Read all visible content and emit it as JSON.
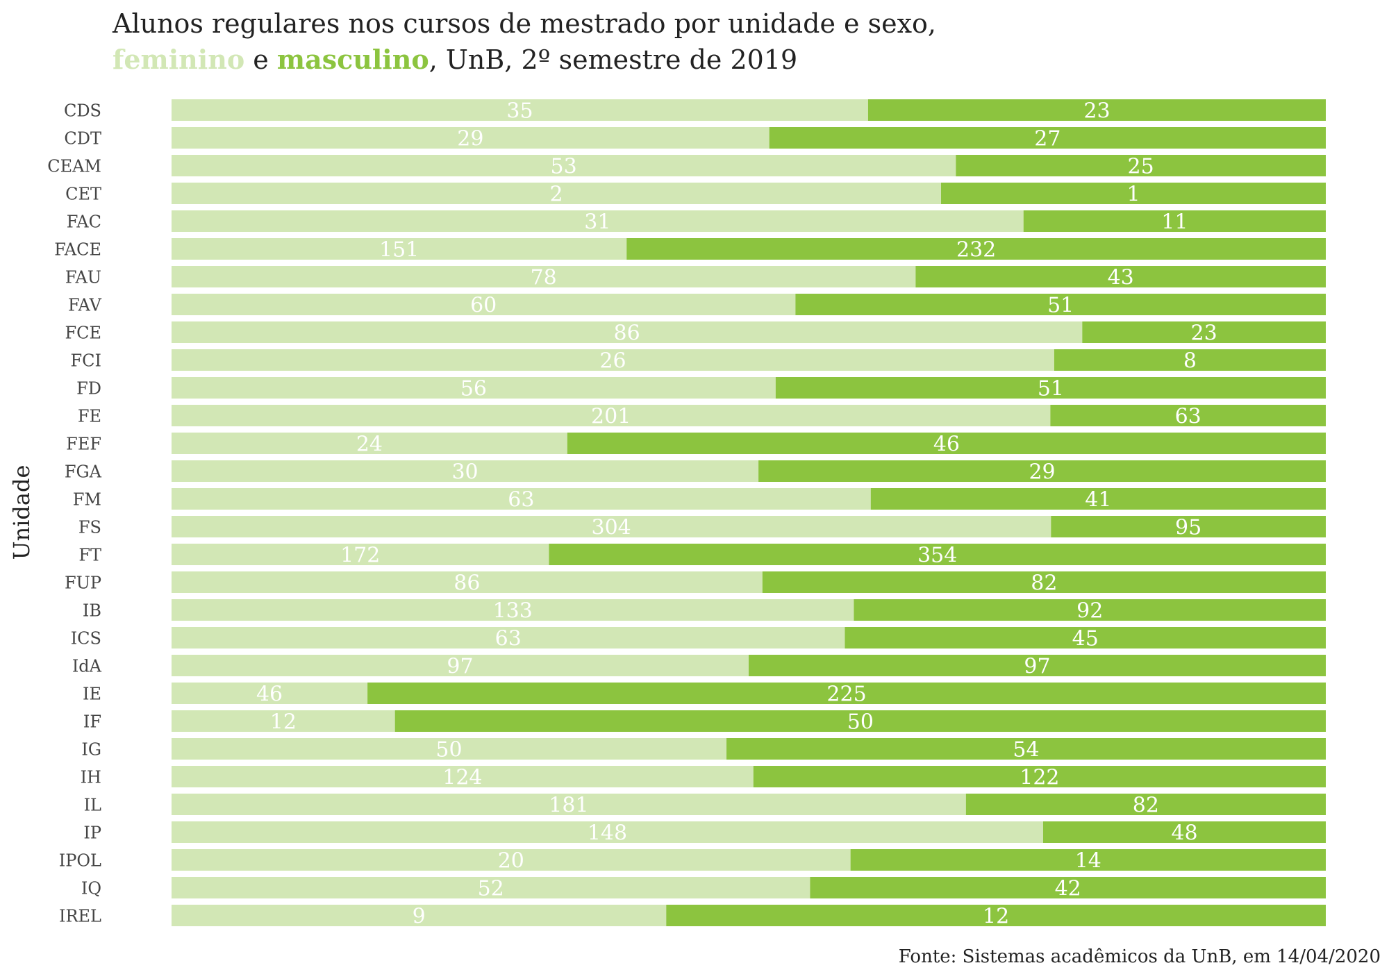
{
  "title": {
    "line1": "Alunos regulares nos cursos de mestrado por unidade e sexo,",
    "feminino": "feminino",
    "connector": " e ",
    "masculino": "masculino",
    "rest": ", UnB, 2º semestre de 2019"
  },
  "source": "Fonte: Sistemas acadêmicos da UnB, em 14/04/2020",
  "colors": {
    "feminino": "#d2e7b5",
    "masculino": "#8cc43f",
    "label": "#ffffff",
    "axis_text": "#444444"
  },
  "chart_data": {
    "type": "bar",
    "orientation": "horizontal",
    "stacked": "percent",
    "ylabel": "Unidade",
    "categories": [
      "CDS",
      "CDT",
      "CEAM",
      "CET",
      "FAC",
      "FACE",
      "FAU",
      "FAV",
      "FCE",
      "FCI",
      "FD",
      "FE",
      "FEF",
      "FGA",
      "FM",
      "FS",
      "FT",
      "FUP",
      "IB",
      "ICS",
      "IdA",
      "IE",
      "IF",
      "IG",
      "IH",
      "IL",
      "IP",
      "IPOL",
      "IQ",
      "IREL"
    ],
    "series": [
      {
        "name": "feminino",
        "values": [
          35,
          29,
          53,
          2,
          31,
          151,
          78,
          60,
          86,
          26,
          56,
          201,
          24,
          30,
          63,
          304,
          172,
          86,
          133,
          63,
          97,
          46,
          12,
          50,
          124,
          181,
          148,
          20,
          52,
          9
        ]
      },
      {
        "name": "masculino",
        "values": [
          23,
          27,
          25,
          1,
          11,
          232,
          43,
          51,
          23,
          8,
          51,
          63,
          46,
          29,
          41,
          95,
          354,
          82,
          92,
          45,
          97,
          225,
          50,
          54,
          122,
          82,
          48,
          14,
          42,
          12
        ]
      }
    ],
    "grid": false,
    "legend": "in-title"
  }
}
